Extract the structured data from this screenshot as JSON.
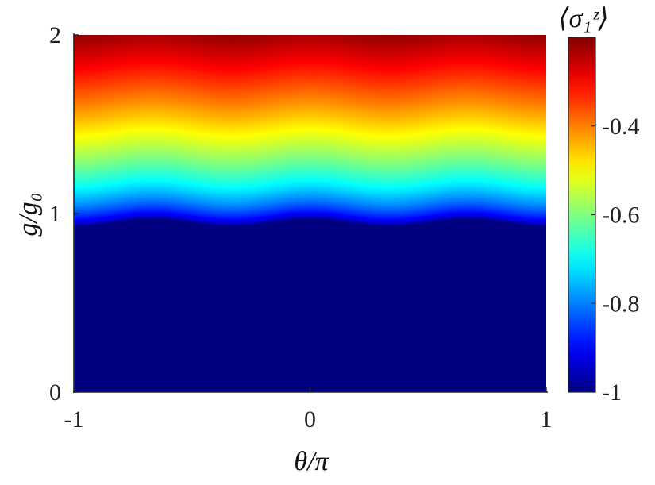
{
  "chart_data": {
    "type": "heatmap",
    "title": "",
    "xlabel": "θ/π",
    "ylabel": "g/g₀",
    "xlim": [
      -1,
      1
    ],
    "ylim": [
      0,
      2
    ],
    "x_ticks": [
      {
        "value": -1,
        "label": "-1"
      },
      {
        "value": 0,
        "label": "0"
      },
      {
        "value": 1,
        "label": "1"
      }
    ],
    "y_ticks": [
      {
        "value": 0,
        "label": "0"
      },
      {
        "value": 1,
        "label": "1"
      },
      {
        "value": 2,
        "label": "2"
      }
    ],
    "colorbar": {
      "label": "⟨σ₁ᶻ⟩",
      "range": [
        -1,
        -0.2
      ],
      "colormap": "jet",
      "ticks": [
        {
          "value": -1,
          "label": "-1"
        },
        {
          "value": -0.8,
          "label": "-0.8"
        },
        {
          "value": -0.6,
          "label": "-0.6"
        },
        {
          "value": -0.4,
          "label": "-0.4"
        }
      ]
    },
    "onset_curve": {
      "theta": [
        -1,
        -0.667,
        -0.333,
        0,
        0.333,
        0.667,
        1
      ],
      "g": [
        0.93,
        0.97,
        0.93,
        0.97,
        0.93,
        0.97,
        0.93
      ]
    },
    "saturation_width": 1.1,
    "grid": false
  }
}
